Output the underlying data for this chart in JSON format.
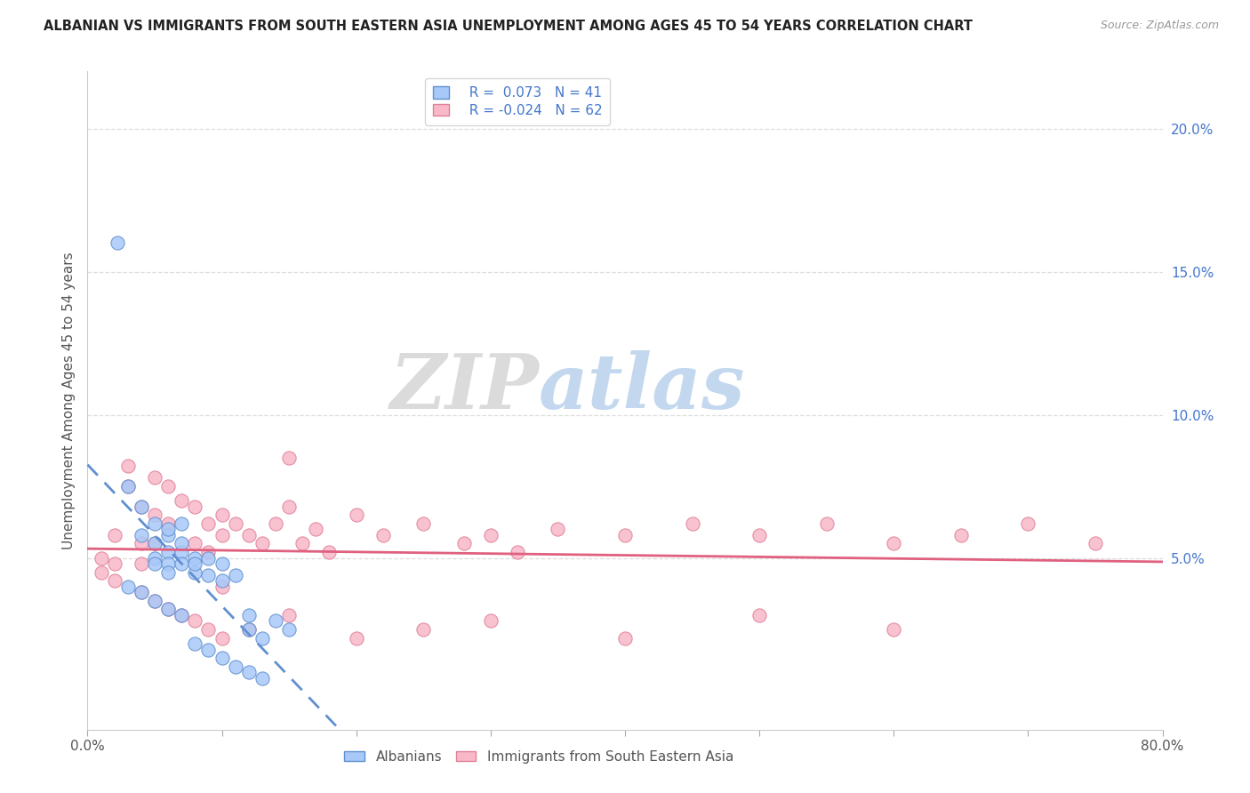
{
  "title": "ALBANIAN VS IMMIGRANTS FROM SOUTH EASTERN ASIA UNEMPLOYMENT AMONG AGES 45 TO 54 YEARS CORRELATION CHART",
  "source": "Source: ZipAtlas.com",
  "ylabel": "Unemployment Among Ages 45 to 54 years",
  "legend_blue_r": "R =  0.073",
  "legend_blue_n": "N = 41",
  "legend_pink_r": "R = -0.024",
  "legend_pink_n": "N = 62",
  "xlim": [
    0.0,
    0.8
  ],
  "ylim": [
    -0.01,
    0.22
  ],
  "yticks_right": [
    0.05,
    0.1,
    0.15,
    0.2
  ],
  "ytick_right_labels": [
    "5.0%",
    "10.0%",
    "15.0%",
    "20.0%"
  ],
  "xticks": [
    0.0,
    0.1,
    0.2,
    0.3,
    0.4,
    0.5,
    0.6,
    0.7,
    0.8
  ],
  "xtick_labels": [
    "0.0%",
    "",
    "",
    "",
    "",
    "",
    "",
    "",
    "80.0%"
  ],
  "watermark_zip": "ZIP",
  "watermark_atlas": "atlas",
  "blue_scatter_color": "#a8c8f8",
  "blue_scatter_edge": "#6090d0",
  "pink_scatter_color": "#f8b8c8",
  "pink_scatter_edge": "#e08098",
  "blue_line_color": "#6090d0",
  "pink_line_color": "#e06080",
  "grid_color": "#dddddd",
  "spine_color": "#cccccc",
  "albanian_x": [
    0.022,
    0.03,
    0.04,
    0.04,
    0.05,
    0.05,
    0.05,
    0.05,
    0.06,
    0.06,
    0.06,
    0.06,
    0.06,
    0.07,
    0.07,
    0.07,
    0.07,
    0.08,
    0.08,
    0.08,
    0.09,
    0.09,
    0.1,
    0.1,
    0.11,
    0.12,
    0.12,
    0.13,
    0.14,
    0.15,
    0.03,
    0.04,
    0.05,
    0.06,
    0.07,
    0.08,
    0.09,
    0.1,
    0.11,
    0.12,
    0.13
  ],
  "albanian_y": [
    0.16,
    0.075,
    0.068,
    0.058,
    0.062,
    0.055,
    0.05,
    0.048,
    0.058,
    0.052,
    0.048,
    0.045,
    0.06,
    0.052,
    0.048,
    0.062,
    0.055,
    0.05,
    0.045,
    0.048,
    0.05,
    0.044,
    0.048,
    0.042,
    0.044,
    0.03,
    0.025,
    0.022,
    0.028,
    0.025,
    0.04,
    0.038,
    0.035,
    0.032,
    0.03,
    0.02,
    0.018,
    0.015,
    0.012,
    0.01,
    0.008
  ],
  "sea_x": [
    0.01,
    0.01,
    0.02,
    0.02,
    0.02,
    0.03,
    0.03,
    0.04,
    0.04,
    0.04,
    0.05,
    0.05,
    0.05,
    0.06,
    0.06,
    0.07,
    0.08,
    0.08,
    0.09,
    0.09,
    0.1,
    0.1,
    0.11,
    0.12,
    0.13,
    0.14,
    0.15,
    0.16,
    0.17,
    0.18,
    0.2,
    0.22,
    0.25,
    0.28,
    0.3,
    0.32,
    0.35,
    0.4,
    0.45,
    0.5,
    0.55,
    0.6,
    0.65,
    0.7,
    0.75,
    0.04,
    0.05,
    0.06,
    0.07,
    0.08,
    0.09,
    0.1,
    0.12,
    0.15,
    0.2,
    0.25,
    0.3,
    0.4,
    0.5,
    0.6,
    0.1,
    0.15
  ],
  "sea_y": [
    0.05,
    0.045,
    0.058,
    0.048,
    0.042,
    0.082,
    0.075,
    0.068,
    0.055,
    0.048,
    0.078,
    0.065,
    0.055,
    0.075,
    0.062,
    0.07,
    0.068,
    0.055,
    0.062,
    0.052,
    0.065,
    0.058,
    0.062,
    0.058,
    0.055,
    0.062,
    0.068,
    0.055,
    0.06,
    0.052,
    0.065,
    0.058,
    0.062,
    0.055,
    0.058,
    0.052,
    0.06,
    0.058,
    0.062,
    0.058,
    0.062,
    0.055,
    0.058,
    0.062,
    0.055,
    0.038,
    0.035,
    0.032,
    0.03,
    0.028,
    0.025,
    0.022,
    0.025,
    0.03,
    0.022,
    0.025,
    0.028,
    0.022,
    0.03,
    0.025,
    0.04,
    0.085
  ]
}
